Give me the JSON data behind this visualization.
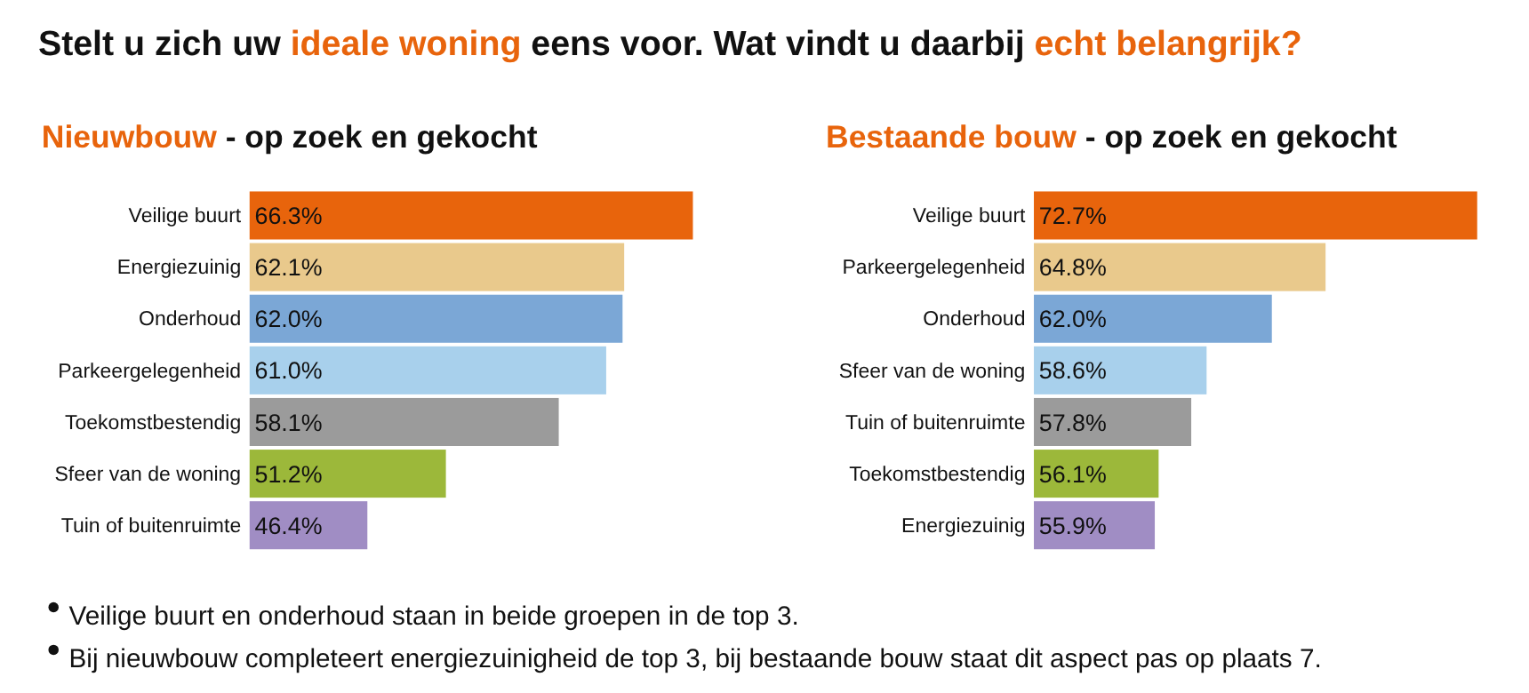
{
  "chart_data": [
    {
      "type": "other",
      "title": "Stelt u zich uw ideale woning eens voor. Wat vindt u daarbij echt belangrijk?",
      "annotations": [
        "Veilige buurt en onderhoud staan in beide groepen in de top 3.",
        "Bij nieuwbouw completeert energiezuinigheid de top 3, bij bestaande bouw staat dit aspect pas op plaats 7."
      ]
    },
    {
      "type": "bar",
      "orientation": "horizontal",
      "title": "Nieuwbouw - op zoek en gekocht",
      "categories": [
        "Veilige buurt",
        "Energiezuinig",
        "Onderhoud",
        "Parkeergelegenheid",
        "Toekomstbestendig",
        "Sfeer van de woning",
        "Tuin of buitenruimte"
      ],
      "values": [
        66.3,
        62.1,
        62.0,
        61.0,
        58.1,
        51.2,
        46.4
      ],
      "value_labels": [
        "66.3%",
        "62.1%",
        "62.0%",
        "61.0%",
        "58.1%",
        "51.2%",
        "46.4%"
      ],
      "colors": [
        "#e8640c",
        "#e9c98c",
        "#7ba7d6",
        "#a8d0ec",
        "#9b9b9b",
        "#9cb83a",
        "#a08dc4"
      ],
      "xlim": [
        39.2,
        66.3
      ]
    },
    {
      "type": "bar",
      "orientation": "horizontal",
      "title": "Bestaande bouw - op zoek en gekocht",
      "categories": [
        "Veilige buurt",
        "Parkeergelegenheid",
        "Onderhoud",
        "Sfeer van de woning",
        "Tuin of buitenruimte",
        "Toekomstbestendig",
        "Energiezuinig"
      ],
      "values": [
        72.7,
        64.8,
        62.0,
        58.6,
        57.8,
        56.1,
        55.9
      ],
      "value_labels": [
        "72.7%",
        "64.8%",
        "62.0%",
        "58.6%",
        "57.8%",
        "56.1%",
        "55.9%"
      ],
      "colors": [
        "#e8640c",
        "#e9c98c",
        "#7ba7d6",
        "#a8d0ec",
        "#9b9b9b",
        "#9cb83a",
        "#a08dc4"
      ],
      "xlim": [
        49.6,
        72.7
      ]
    }
  ]
}
